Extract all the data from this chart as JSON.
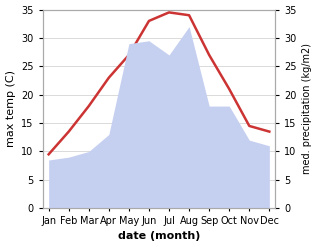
{
  "months": [
    "Jan",
    "Feb",
    "Mar",
    "Apr",
    "May",
    "Jun",
    "Jul",
    "Aug",
    "Sep",
    "Oct",
    "Nov",
    "Dec"
  ],
  "month_positions": [
    0,
    1,
    2,
    3,
    4,
    5,
    6,
    7,
    8,
    9,
    10,
    11
  ],
  "temperature": [
    9.5,
    13.5,
    18.0,
    23.0,
    27.0,
    33.0,
    34.5,
    34.0,
    27.0,
    21.0,
    14.5,
    13.5
  ],
  "precipitation": [
    8.5,
    9.0,
    10.0,
    13.0,
    29.0,
    29.5,
    27.0,
    32.0,
    18.0,
    18.0,
    12.0,
    11.0
  ],
  "temp_color": "#cc3333",
  "precip_color": "#c5cff0",
  "bg_color": "#ffffff",
  "ylim_left": [
    0,
    35
  ],
  "ylim_right": [
    0,
    35
  ],
  "yticks_left": [
    0,
    5,
    10,
    15,
    20,
    25,
    30,
    35
  ],
  "yticks_right": [
    0,
    5,
    10,
    15,
    20,
    25,
    30,
    35
  ],
  "xlabel": "date (month)",
  "ylabel_left": "max temp (C)",
  "ylabel_right": "med. precipitation (kg/m2)",
  "temp_linewidth": 1.8,
  "grid_color": "#cccccc",
  "figsize": [
    3.18,
    2.47
  ],
  "dpi": 100
}
